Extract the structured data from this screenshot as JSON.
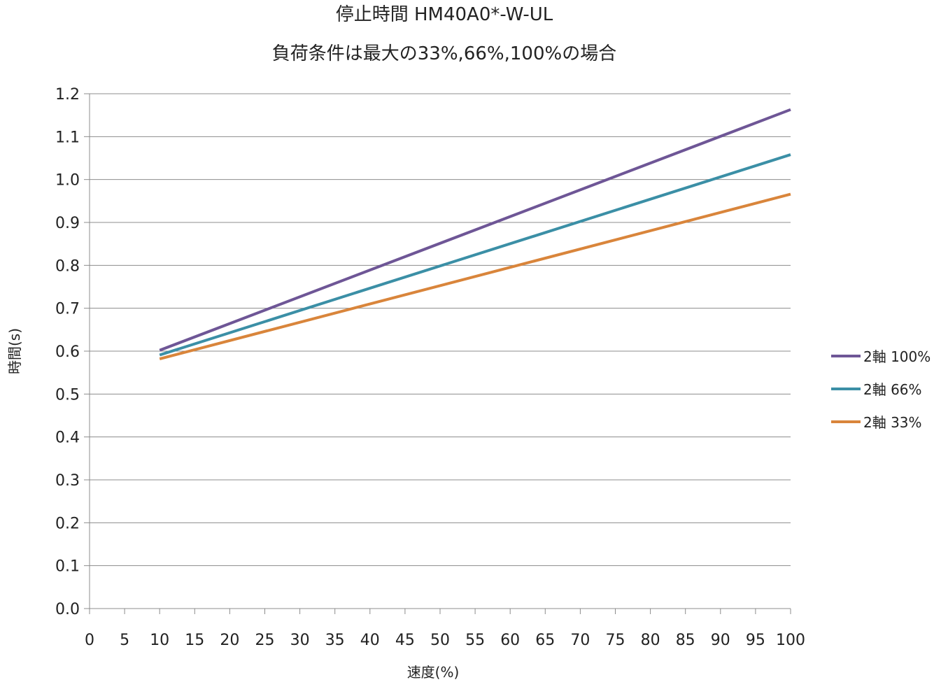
{
  "chart_data": {
    "type": "line",
    "title": "停止時間 HM40A0*-W-UL",
    "subtitle": "負荷条件は最大の33%,66%,100%の場合",
    "xlabel": "速度(%)",
    "ylabel": "時間(s)",
    "xlim": [
      0,
      100
    ],
    "ylim": [
      0,
      1.2
    ],
    "x_ticks": [
      "0",
      "5",
      "10",
      "15",
      "20",
      "25",
      "30",
      "35",
      "40",
      "45",
      "50",
      "55",
      "60",
      "65",
      "70",
      "75",
      "80",
      "85",
      "90",
      "95",
      "100"
    ],
    "y_ticks": [
      "0.0",
      "0.1",
      "0.2",
      "0.3",
      "0.4",
      "0.5",
      "0.6",
      "0.7",
      "0.8",
      "0.9",
      "1.0",
      "1.1",
      "1.2"
    ],
    "grid": "horizontal",
    "legend_position": "right",
    "series": [
      {
        "name": "2軸 100%",
        "color": "#6e5696",
        "x": [
          10,
          100
        ],
        "y": [
          0.602,
          1.163
        ]
      },
      {
        "name": "2軸 66%",
        "color": "#3b8fa6",
        "x": [
          10,
          100
        ],
        "y": [
          0.591,
          1.058
        ]
      },
      {
        "name": "2軸 33%",
        "color": "#d9853b",
        "x": [
          10,
          100
        ],
        "y": [
          0.582,
          0.966
        ]
      }
    ]
  }
}
